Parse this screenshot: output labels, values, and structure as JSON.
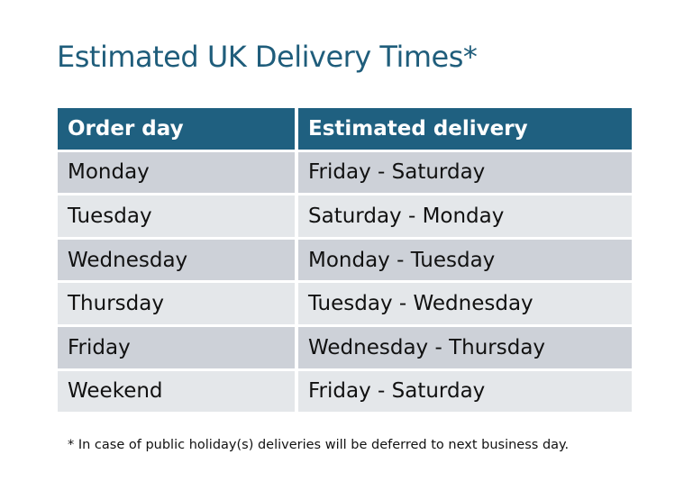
{
  "title": "Estimated UK Delivery Times*",
  "table": {
    "headers": [
      "Order day",
      "Estimated delivery"
    ],
    "rows": [
      [
        "Monday",
        "Friday - Saturday"
      ],
      [
        "Tuesday",
        "Saturday - Monday"
      ],
      [
        "Wednesday",
        "Monday - Tuesday"
      ],
      [
        "Thursday",
        "Tuesday - Wednesday"
      ],
      [
        "Friday",
        "Wednesday - Thursday"
      ],
      [
        "Weekend",
        "Friday - Saturday"
      ]
    ]
  },
  "footnote": "* In case of public holiday(s) deliveries will be deferred to next business day.",
  "colors": {
    "header": "#1f6080",
    "title": "#1f5d7b",
    "row_dark": "#cdd1d8",
    "row_light": "#e4e7ea"
  }
}
